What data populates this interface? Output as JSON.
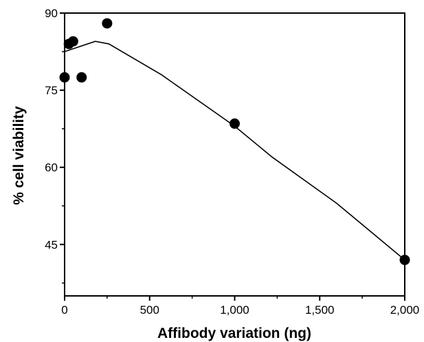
{
  "chart_data": {
    "type": "scatter",
    "xlabel": "Affibody variation (ng)",
    "ylabel": "% cell viability",
    "xlim": [
      0,
      2000
    ],
    "ylim": [
      35,
      90
    ],
    "x_ticks": [
      0,
      500,
      1000,
      1500,
      2000
    ],
    "x_tick_labels": [
      "0",
      "500",
      "1,000",
      "1,500",
      "2,000"
    ],
    "y_ticks": [
      45,
      60,
      75,
      90
    ],
    "y_tick_labels": [
      "45",
      "60",
      "75",
      "90"
    ],
    "grid": false,
    "series": [
      {
        "kind": "points",
        "x": [
          0,
          25,
          50,
          100,
          250,
          1000,
          2000
        ],
        "y": [
          77.5,
          84,
          84.5,
          77.5,
          88,
          68.5,
          42
        ]
      },
      {
        "kind": "fit-line",
        "x": [
          0,
          180,
          260,
          570,
          1000,
          1220,
          1600,
          2000
        ],
        "y": [
          82.5,
          84.5,
          84,
          78,
          68,
          62,
          53,
          42
        ]
      }
    ],
    "colors": {
      "points": "#000000",
      "line": "#000000",
      "axes": "#000000"
    }
  }
}
